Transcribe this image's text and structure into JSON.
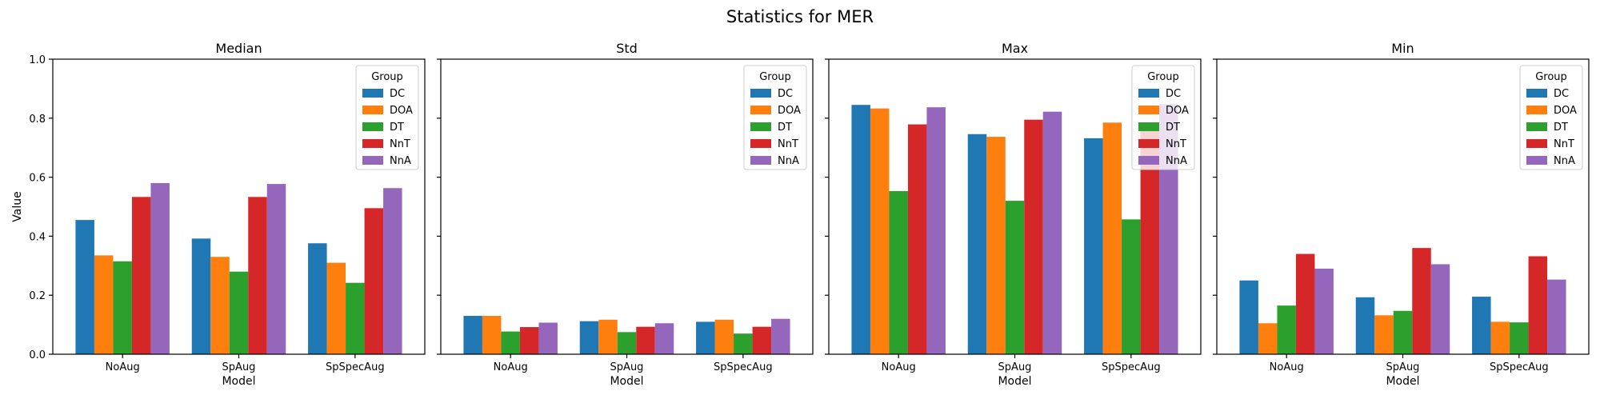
{
  "figure_title": "Statistics for MER",
  "chart_data": [
    {
      "type": "bar",
      "title": "Median",
      "xlabel": "Model",
      "ylabel": "Value",
      "categories": [
        "NoAug",
        "SpAug",
        "SpSpecAug"
      ],
      "ylim": [
        0,
        1.0
      ],
      "yticks": [
        "0.0",
        "0.2",
        "0.4",
        "0.6",
        "0.8",
        "1.0"
      ],
      "legend_title": "Group",
      "legend_position": "top-right",
      "series": [
        {
          "name": "DC",
          "color": "#1f77b4",
          "values": [
            0.455,
            0.392,
            0.376
          ]
        },
        {
          "name": "DOA",
          "color": "#ff7f0e",
          "values": [
            0.335,
            0.33,
            0.31
          ]
        },
        {
          "name": "DT",
          "color": "#2ca02c",
          "values": [
            0.315,
            0.28,
            0.242
          ]
        },
        {
          "name": "NnT",
          "color": "#d62728",
          "values": [
            0.533,
            0.533,
            0.495
          ]
        },
        {
          "name": "NnA",
          "color": "#9467bd",
          "values": [
            0.58,
            0.577,
            0.563
          ]
        }
      ]
    },
    {
      "type": "bar",
      "title": "Std",
      "xlabel": "Model",
      "ylabel": "",
      "categories": [
        "NoAug",
        "SpAug",
        "SpSpecAug"
      ],
      "ylim": [
        0,
        1.0
      ],
      "yticks": [
        "",
        "",
        "",
        "",
        "",
        ""
      ],
      "legend_title": "Group",
      "legend_position": "top-right",
      "series": [
        {
          "name": "DC",
          "color": "#1f77b4",
          "values": [
            0.13,
            0.112,
            0.11
          ]
        },
        {
          "name": "DOA",
          "color": "#ff7f0e",
          "values": [
            0.13,
            0.117,
            0.117
          ]
        },
        {
          "name": "DT",
          "color": "#2ca02c",
          "values": [
            0.077,
            0.075,
            0.07
          ]
        },
        {
          "name": "NnT",
          "color": "#d62728",
          "values": [
            0.092,
            0.093,
            0.093
          ]
        },
        {
          "name": "NnA",
          "color": "#9467bd",
          "values": [
            0.107,
            0.105,
            0.12
          ]
        }
      ]
    },
    {
      "type": "bar",
      "title": "Max",
      "xlabel": "Model",
      "ylabel": "",
      "categories": [
        "NoAug",
        "SpAug",
        "SpSpecAug"
      ],
      "ylim": [
        0,
        1.0
      ],
      "yticks": [
        "",
        "",
        "",
        "",
        "",
        ""
      ],
      "legend_title": "Group",
      "legend_position": "top-right",
      "series": [
        {
          "name": "DC",
          "color": "#1f77b4",
          "values": [
            0.845,
            0.746,
            0.732
          ]
        },
        {
          "name": "DOA",
          "color": "#ff7f0e",
          "values": [
            0.833,
            0.737,
            0.785
          ]
        },
        {
          "name": "DT",
          "color": "#2ca02c",
          "values": [
            0.553,
            0.52,
            0.457
          ]
        },
        {
          "name": "NnT",
          "color": "#d62728",
          "values": [
            0.779,
            0.795,
            0.762
          ]
        },
        {
          "name": "NnA",
          "color": "#9467bd",
          "values": [
            0.837,
            0.822,
            0.848
          ]
        }
      ]
    },
    {
      "type": "bar",
      "title": "Min",
      "xlabel": "Model",
      "ylabel": "",
      "categories": [
        "NoAug",
        "SpAug",
        "SpSpecAug"
      ],
      "ylim": [
        0,
        1.0
      ],
      "yticks": [
        "",
        "",
        "",
        "",
        "",
        ""
      ],
      "legend_title": "Group",
      "legend_position": "top-right",
      "series": [
        {
          "name": "DC",
          "color": "#1f77b4",
          "values": [
            0.25,
            0.193,
            0.195
          ]
        },
        {
          "name": "DOA",
          "color": "#ff7f0e",
          "values": [
            0.105,
            0.132,
            0.11
          ]
        },
        {
          "name": "DT",
          "color": "#2ca02c",
          "values": [
            0.165,
            0.147,
            0.108
          ]
        },
        {
          "name": "NnT",
          "color": "#d62728",
          "values": [
            0.34,
            0.36,
            0.332
          ]
        },
        {
          "name": "NnA",
          "color": "#9467bd",
          "values": [
            0.29,
            0.305,
            0.253
          ]
        }
      ]
    }
  ]
}
